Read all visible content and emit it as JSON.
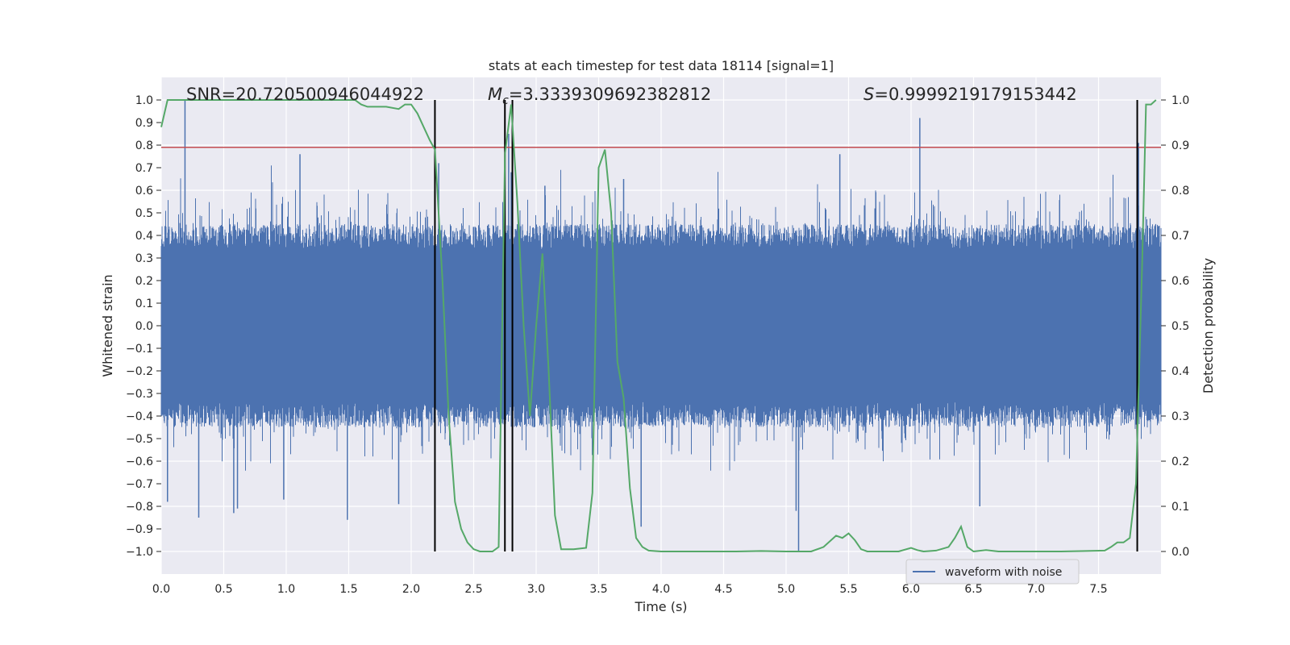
{
  "chart_data": {
    "type": "line",
    "title": "stats at each timestep for test data 18114 [signal=1]",
    "xlabel": "Time (s)",
    "ylabel": "Whitened strain",
    "y2label": "Detection probability",
    "xlim": [
      0.0,
      8.0
    ],
    "ylim": [
      -1.1,
      1.1
    ],
    "y2lim": [
      -0.05,
      1.05
    ],
    "xticks": [
      0.0,
      0.5,
      1.0,
      1.5,
      2.0,
      2.5,
      3.0,
      3.5,
      4.0,
      4.5,
      5.0,
      5.5,
      6.0,
      6.5,
      7.0,
      7.5
    ],
    "yticks": [
      -1.0,
      -0.9,
      -0.8,
      -0.7,
      -0.6,
      -0.5,
      -0.4,
      -0.3,
      -0.2,
      -0.1,
      0.0,
      0.1,
      0.2,
      0.3,
      0.4,
      0.5,
      0.6,
      0.7,
      0.8,
      0.9,
      1.0
    ],
    "y2ticks": [
      0.0,
      0.1,
      0.2,
      0.3,
      0.4,
      0.5,
      0.6,
      0.7,
      0.8,
      0.9,
      1.0
    ],
    "annotations": {
      "snr_label": "SNR=20.720500946044922",
      "mc_symbol": "M",
      "mc_sub": "c",
      "mc_value": "=3.3339309692382812",
      "s_symbol": "S",
      "s_value": "=0.9999219179153442"
    },
    "legend": {
      "label": "waveform with noise",
      "location": "lower-right"
    },
    "threshold": {
      "value": 0.79,
      "color": "#c44e52"
    },
    "vertical_markers": [
      2.19,
      2.75,
      2.81,
      7.81
    ],
    "waveform": {
      "name": "waveform with noise",
      "color": "#4c72b0",
      "envelope": 0.45,
      "spikes": [
        {
          "t": 0.19,
          "v": 1.0
        },
        {
          "t": 0.3,
          "v": -0.85
        },
        {
          "t": 0.05,
          "v": -0.78
        },
        {
          "t": 0.58,
          "v": -0.83
        },
        {
          "t": 0.61,
          "v": -0.81
        },
        {
          "t": 1.49,
          "v": -0.86
        },
        {
          "t": 1.9,
          "v": -0.79
        },
        {
          "t": 2.22,
          "v": 0.72
        },
        {
          "t": 2.78,
          "v": 0.85
        },
        {
          "t": 2.8,
          "v": 0.68
        },
        {
          "t": 3.07,
          "v": 0.62
        },
        {
          "t": 3.7,
          "v": 0.65
        },
        {
          "t": 3.84,
          "v": -0.89
        },
        {
          "t": 5.1,
          "v": -1.0
        },
        {
          "t": 5.08,
          "v": -0.82
        },
        {
          "t": 6.07,
          "v": 0.92
        },
        {
          "t": 5.43,
          "v": 0.76
        },
        {
          "t": 6.55,
          "v": -0.8
        },
        {
          "t": 7.82,
          "v": 0.81
        },
        {
          "t": 1.11,
          "v": 0.76
        },
        {
          "t": 0.98,
          "v": -0.77
        }
      ]
    },
    "probability": {
      "name": "detection probability",
      "color": "#55a868",
      "x": [
        0.0,
        0.05,
        0.1,
        0.2,
        0.4,
        0.6,
        0.8,
        1.0,
        1.2,
        1.4,
        1.55,
        1.6,
        1.65,
        1.7,
        1.8,
        1.9,
        1.95,
        2.0,
        2.05,
        2.1,
        2.15,
        2.19,
        2.25,
        2.3,
        2.35,
        2.4,
        2.45,
        2.5,
        2.55,
        2.6,
        2.65,
        2.7,
        2.75,
        2.8,
        2.85,
        2.9,
        2.95,
        3.0,
        3.05,
        3.1,
        3.15,
        3.2,
        3.3,
        3.4,
        3.45,
        3.5,
        3.55,
        3.6,
        3.65,
        3.7,
        3.75,
        3.8,
        3.85,
        3.9,
        4.0,
        4.2,
        4.4,
        4.6,
        4.8,
        5.0,
        5.2,
        5.3,
        5.4,
        5.45,
        5.5,
        5.55,
        5.6,
        5.65,
        5.7,
        5.75,
        5.8,
        5.9,
        6.0,
        6.05,
        6.1,
        6.2,
        6.3,
        6.35,
        6.4,
        6.45,
        6.5,
        6.6,
        6.7,
        6.8,
        7.0,
        7.2,
        7.4,
        7.55,
        7.6,
        7.65,
        7.7,
        7.75,
        7.8,
        7.85,
        7.88,
        7.92,
        7.96
      ],
      "y": [
        0.94,
        1.0,
        1.0,
        1.0,
        1.0,
        1.0,
        1.0,
        1.0,
        1.0,
        1.0,
        1.0,
        0.99,
        0.985,
        0.985,
        0.985,
        0.98,
        0.99,
        0.99,
        0.97,
        0.94,
        0.91,
        0.89,
        0.6,
        0.3,
        0.11,
        0.05,
        0.02,
        0.005,
        0.0,
        0.0,
        0.0,
        0.01,
        0.88,
        0.99,
        0.77,
        0.5,
        0.3,
        0.5,
        0.66,
        0.4,
        0.08,
        0.005,
        0.005,
        0.008,
        0.13,
        0.85,
        0.89,
        0.75,
        0.42,
        0.34,
        0.14,
        0.03,
        0.01,
        0.002,
        0.0,
        0.0,
        0.0,
        0.0,
        0.001,
        0.0,
        0.0,
        0.01,
        0.035,
        0.03,
        0.04,
        0.025,
        0.005,
        0.0,
        0.0,
        0.0,
        0.0,
        0.0,
        0.008,
        0.003,
        0.0,
        0.002,
        0.01,
        0.03,
        0.055,
        0.01,
        0.0,
        0.003,
        0.0,
        0.0,
        0.0,
        0.0,
        0.001,
        0.002,
        0.01,
        0.02,
        0.02,
        0.03,
        0.15,
        0.65,
        0.99,
        0.99,
        1.0
      ]
    }
  }
}
